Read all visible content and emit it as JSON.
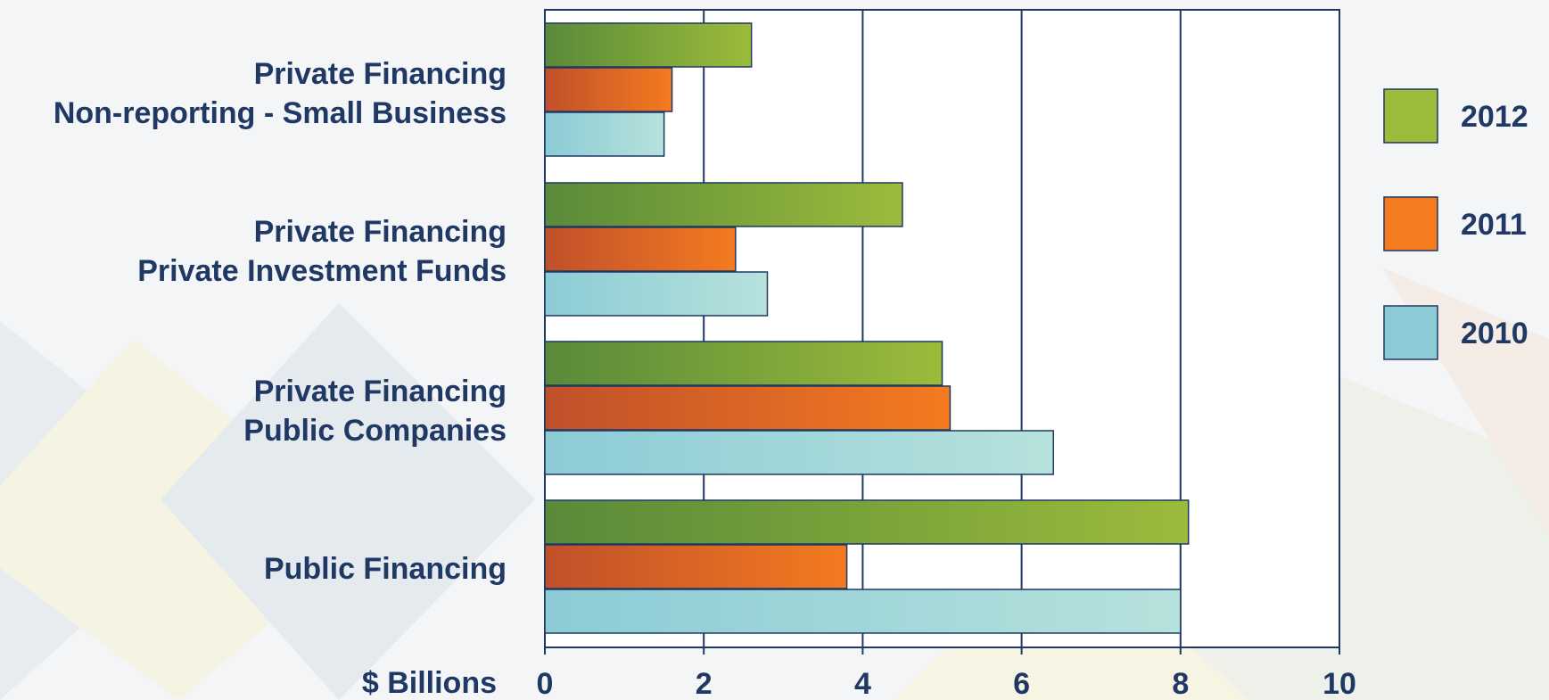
{
  "chart_data": {
    "type": "bar",
    "orientation": "horizontal",
    "categories": [
      [
        "Private Financing",
        "Non-reporting - Small Business"
      ],
      [
        "Private Financing",
        "Private Investment Funds"
      ],
      [
        "Private Financing",
        "Public Companies"
      ],
      [
        "Public Financing"
      ]
    ],
    "series": [
      {
        "name": "2012",
        "values": [
          2.6,
          4.5,
          5.0,
          8.1
        ],
        "color": "#9bbb3b",
        "color_dark": "#5a8a3a"
      },
      {
        "name": "2011",
        "values": [
          1.6,
          2.4,
          5.1,
          3.8
        ],
        "color": "#f47b20",
        "color_dark": "#c0502a"
      },
      {
        "name": "2010",
        "values": [
          1.5,
          2.8,
          6.4,
          8.0
        ],
        "color": "#8ccbd6",
        "color_dark": "#8ccbd6"
      }
    ],
    "xlabel": "$ Billions",
    "xlim": [
      0,
      10
    ],
    "xticks": [
      "0",
      "2",
      "4",
      "6",
      "8",
      "10"
    ],
    "grid": true,
    "legend_position": "right",
    "axis_color": "#1f3864",
    "text_color": "#1f3864"
  }
}
